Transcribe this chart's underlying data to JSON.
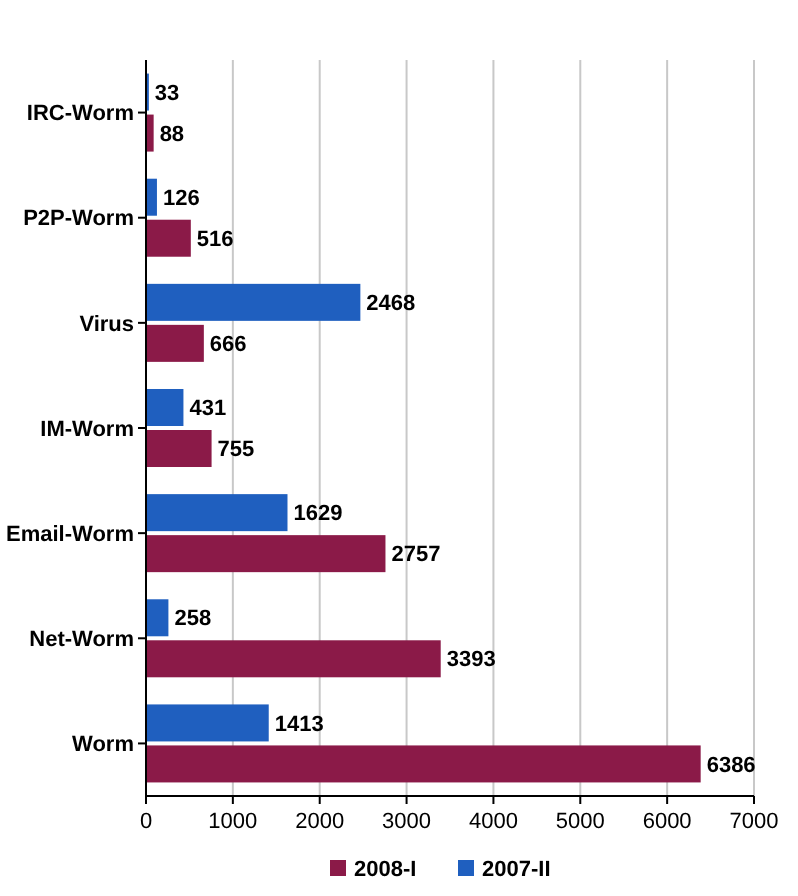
{
  "chart_data": {
    "type": "bar",
    "orientation": "horizontal",
    "categories": [
      "IRC-Worm",
      "P2P-Worm",
      "Virus",
      "IM-Worm",
      "Email-Worm",
      "Net-Worm",
      "Worm"
    ],
    "series": [
      {
        "name": "2007-II",
        "color": "#1f5fbf",
        "values": [
          33,
          126,
          2468,
          431,
          1629,
          258,
          1413
        ]
      },
      {
        "name": "2008-I",
        "color": "#8b1a48",
        "values": [
          88,
          516,
          666,
          755,
          2757,
          3393,
          6386
        ]
      }
    ],
    "xlim": [
      0,
      7000
    ],
    "xticks": [
      0,
      1000,
      2000,
      3000,
      4000,
      5000,
      6000,
      7000
    ],
    "grid": "x",
    "legend": "bottom",
    "data_labels": true
  }
}
